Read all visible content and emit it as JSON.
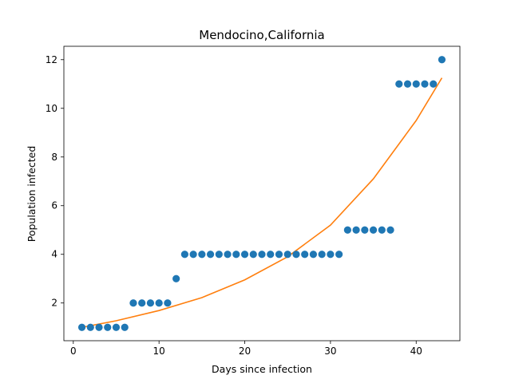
{
  "chart_data": {
    "type": "scatter",
    "title": "Mendocino,California",
    "xlabel": "Days since infection",
    "ylabel": "Population infected",
    "xlim": [
      -1.1,
      45.1
    ],
    "ylim": [
      0.45,
      12.55
    ],
    "xticks": [
      0,
      10,
      20,
      30,
      40
    ],
    "yticks": [
      2,
      4,
      6,
      8,
      10,
      12
    ],
    "grid": false,
    "legend": "none",
    "series": [
      {
        "kind": "scatter",
        "color": "#1f77b4",
        "points": [
          [
            1,
            1
          ],
          [
            2,
            1
          ],
          [
            3,
            1
          ],
          [
            4,
            1
          ],
          [
            5,
            1
          ],
          [
            6,
            1
          ],
          [
            7,
            2
          ],
          [
            8,
            2
          ],
          [
            9,
            2
          ],
          [
            10,
            2
          ],
          [
            11,
            2
          ],
          [
            12,
            3
          ],
          [
            13,
            4
          ],
          [
            14,
            4
          ],
          [
            15,
            4
          ],
          [
            16,
            4
          ],
          [
            17,
            4
          ],
          [
            18,
            4
          ],
          [
            19,
            4
          ],
          [
            20,
            4
          ],
          [
            21,
            4
          ],
          [
            22,
            4
          ],
          [
            23,
            4
          ],
          [
            24,
            4
          ],
          [
            25,
            4
          ],
          [
            26,
            4
          ],
          [
            27,
            4
          ],
          [
            28,
            4
          ],
          [
            29,
            4
          ],
          [
            30,
            4
          ],
          [
            31,
            4
          ],
          [
            32,
            5
          ],
          [
            33,
            5
          ],
          [
            34,
            5
          ],
          [
            35,
            5
          ],
          [
            36,
            5
          ],
          [
            37,
            5
          ],
          [
            38,
            11
          ],
          [
            39,
            11
          ],
          [
            40,
            11
          ],
          [
            41,
            11
          ],
          [
            42,
            11
          ],
          [
            43,
            12
          ]
        ]
      },
      {
        "kind": "line",
        "color": "#ff7f0e",
        "points": [
          [
            1,
            1.0
          ],
          [
            5,
            1.27
          ],
          [
            10,
            1.69
          ],
          [
            15,
            2.22
          ],
          [
            20,
            2.95
          ],
          [
            25,
            3.9
          ],
          [
            30,
            5.2
          ],
          [
            35,
            7.1
          ],
          [
            40,
            9.5
          ],
          [
            43,
            11.25
          ]
        ]
      }
    ]
  }
}
